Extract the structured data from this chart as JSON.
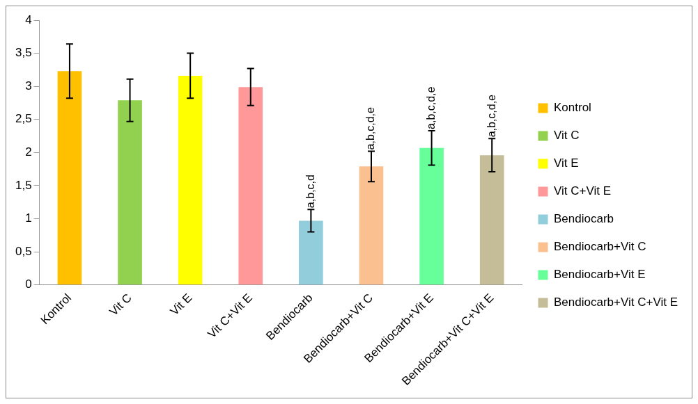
{
  "chart_data": {
    "type": "bar",
    "stacked": true,
    "categories": [
      "Kontrol",
      "Vit C",
      "Vit E",
      "Vit C+Vit E",
      "Bendiocarb",
      "Bendiocarb+Vit C",
      "Bendiocarb+Vit E",
      "Bendiocarb+Vit C+Vit E"
    ],
    "series": [
      {
        "name": "Kontrol",
        "color": "#ffc000",
        "values": [
          3.23,
          null,
          null,
          null,
          null,
          null,
          null,
          null
        ],
        "errors": [
          0.41,
          null,
          null,
          null,
          null,
          null,
          null,
          null
        ]
      },
      {
        "name": "Vit C",
        "color": "#92d050",
        "values": [
          null,
          2.79,
          null,
          null,
          null,
          null,
          null,
          null
        ],
        "errors": [
          null,
          0.32,
          null,
          null,
          null,
          null,
          null,
          null
        ]
      },
      {
        "name": "Vit E",
        "color": "#ffff00",
        "values": [
          null,
          null,
          3.16,
          null,
          null,
          null,
          null,
          null
        ],
        "errors": [
          null,
          null,
          0.34,
          null,
          null,
          null,
          null,
          null
        ]
      },
      {
        "name": "Vit C+Vit E",
        "color": "#ff9999",
        "values": [
          null,
          null,
          null,
          2.99,
          null,
          null,
          null,
          null
        ],
        "errors": [
          null,
          null,
          null,
          0.28,
          null,
          null,
          null,
          null
        ]
      },
      {
        "name": "Bendiocarb",
        "color": "#92cddc",
        "values": [
          null,
          null,
          null,
          null,
          0.97,
          null,
          null,
          null
        ],
        "errors": [
          null,
          null,
          null,
          null,
          0.17,
          null,
          null,
          null
        ]
      },
      {
        "name": "Bendiocarb+Vit C",
        "color": "#fac090",
        "values": [
          null,
          null,
          null,
          null,
          null,
          1.79,
          null,
          null
        ],
        "errors": [
          null,
          null,
          null,
          null,
          null,
          0.23,
          null,
          null
        ]
      },
      {
        "name": "Bendiocarb+Vit E",
        "color": "#66ff99",
        "values": [
          null,
          null,
          null,
          null,
          null,
          null,
          2.07,
          null
        ],
        "errors": [
          null,
          null,
          null,
          null,
          null,
          null,
          0.26,
          null
        ]
      },
      {
        "name": "Bendiocarb+Vit C+Vit E",
        "color": "#c4bd97",
        "values": [
          null,
          null,
          null,
          null,
          null,
          null,
          null,
          1.96
        ],
        "errors": [
          null,
          null,
          null,
          null,
          null,
          null,
          null,
          0.25
        ]
      }
    ],
    "ylim": [
      0,
      4
    ],
    "yticks": [
      0,
      {
        "value": 0.5,
        "label": "0,5"
      },
      1,
      {
        "value": 1.5,
        "label": "1,5"
      },
      2,
      {
        "value": 2.5,
        "label": "2,5"
      },
      3,
      {
        "value": 3.5,
        "label": "3,5"
      },
      4
    ],
    "grid": false,
    "legend": "right",
    "annotations": [
      {
        "text": "a,b,c,d",
        "x": "Bendiocarb",
        "y": 1.14
      },
      {
        "text": "a,b,c,d,e",
        "x": "Bendiocarb+Vit C",
        "y": 2.02
      },
      {
        "text": "a,b,c,d,e",
        "x": "Bendiocarb+Vit E",
        "y": 2.33
      },
      {
        "text": "a,b,c,d,e",
        "x": "Bendiocarb+Vit C+Vit E",
        "y": 2.21
      }
    ]
  }
}
